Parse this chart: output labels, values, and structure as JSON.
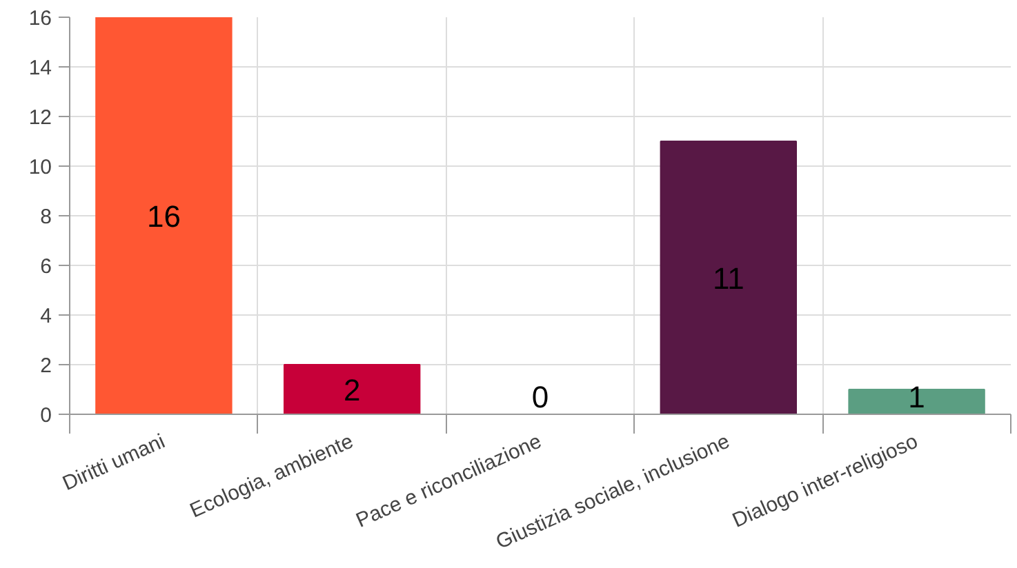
{
  "chart_data": {
    "type": "bar",
    "categories": [
      "Diritti umani",
      "Ecologia, ambiente",
      "Pace e riconciliazione",
      "Giustizia sociale, inclusione",
      "Dialogo inter-religioso"
    ],
    "values": [
      16,
      2,
      0,
      11,
      1
    ],
    "colors": [
      "#ff5733",
      "#c70039",
      "#ffc300",
      "#581845",
      "#5b9e82"
    ],
    "ylim": [
      0,
      16
    ],
    "yticks": [
      0,
      2,
      4,
      6,
      8,
      10,
      12,
      14,
      16
    ],
    "grid": true,
    "data_labels": true
  }
}
